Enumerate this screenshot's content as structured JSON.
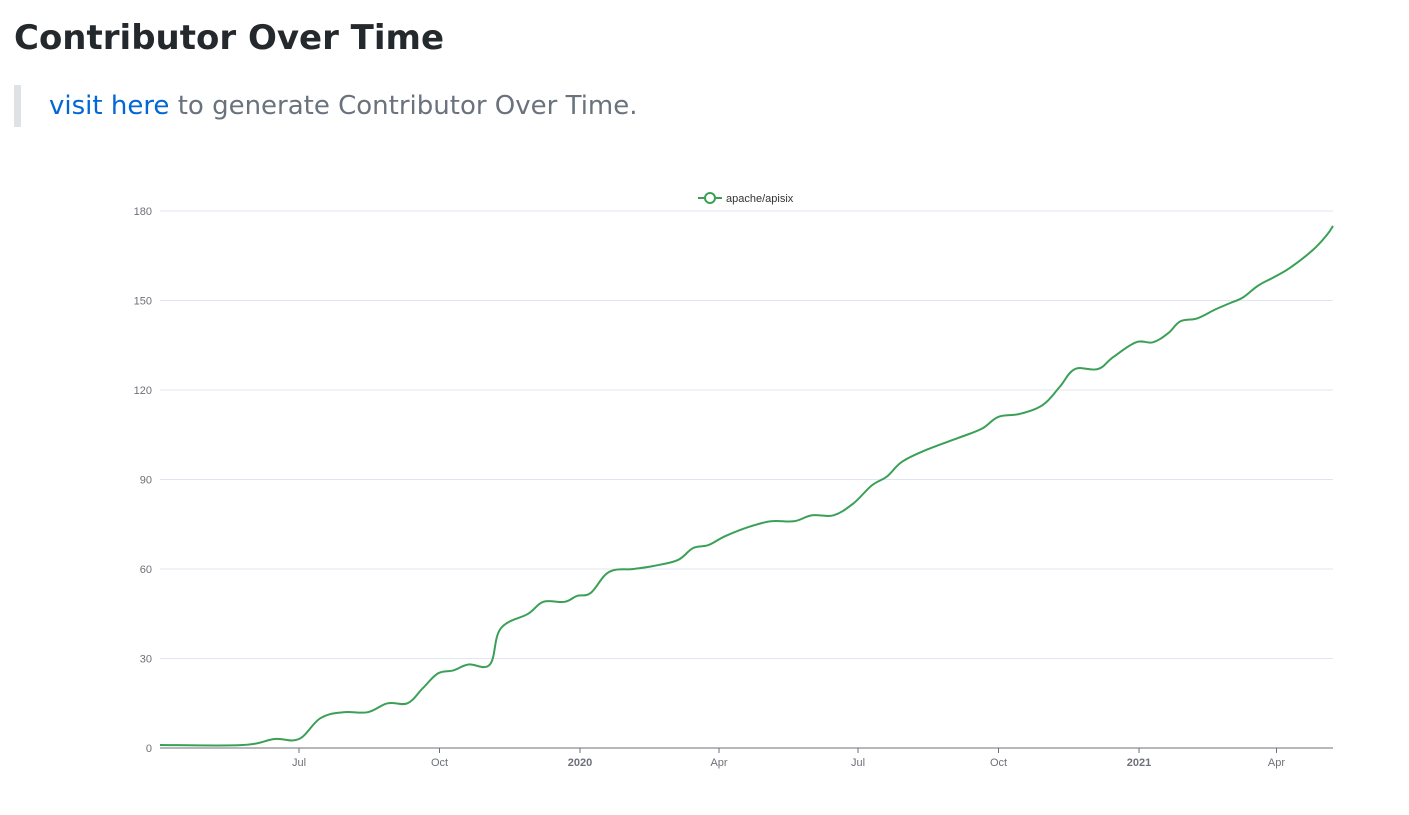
{
  "page": {
    "title": "Contributor Over Time",
    "note": {
      "link_text": "visit here",
      "rest_text": " to generate Contributor Over Time."
    }
  },
  "colors": {
    "series": "#3ba057",
    "grid": "#e0e6f1",
    "axis": "#6e7079"
  },
  "chart_data": {
    "type": "line",
    "title": "",
    "xlabel": "",
    "ylabel": "",
    "ylim": [
      0,
      180
    ],
    "yticks": [
      0,
      30,
      60,
      90,
      120,
      150,
      180
    ],
    "xlim": [
      "2019-04-01",
      "2021-05-08"
    ],
    "xticks": [
      {
        "date": "2019-07-01",
        "label": "Jul",
        "bold": false
      },
      {
        "date": "2019-10-01",
        "label": "Oct",
        "bold": false
      },
      {
        "date": "2020-01-01",
        "label": "2020",
        "bold": true
      },
      {
        "date": "2020-04-01",
        "label": "Apr",
        "bold": false
      },
      {
        "date": "2020-07-01",
        "label": "Jul",
        "bold": false
      },
      {
        "date": "2020-10-01",
        "label": "Oct",
        "bold": false
      },
      {
        "date": "2021-01-01",
        "label": "2021",
        "bold": true
      },
      {
        "date": "2021-04-01",
        "label": "Apr",
        "bold": false
      }
    ],
    "legend_position": "top-center",
    "grid": true,
    "series": [
      {
        "name": "apache/apisix",
        "points": [
          [
            "2019-04-01",
            1
          ],
          [
            "2019-05-25",
            1
          ],
          [
            "2019-06-15",
            3
          ],
          [
            "2019-07-01",
            3
          ],
          [
            "2019-07-15",
            10
          ],
          [
            "2019-07-30",
            12
          ],
          [
            "2019-08-15",
            12
          ],
          [
            "2019-08-28",
            15
          ],
          [
            "2019-09-10",
            15
          ],
          [
            "2019-09-20",
            20
          ],
          [
            "2019-09-30",
            25
          ],
          [
            "2019-10-10",
            26
          ],
          [
            "2019-10-20",
            28
          ],
          [
            "2019-11-03",
            28
          ],
          [
            "2019-11-10",
            40
          ],
          [
            "2019-11-28",
            45
          ],
          [
            "2019-12-08",
            49
          ],
          [
            "2019-12-22",
            49
          ],
          [
            "2019-12-30",
            51
          ],
          [
            "2020-01-08",
            52
          ],
          [
            "2020-01-20",
            59
          ],
          [
            "2020-02-05",
            60
          ],
          [
            "2020-02-18",
            61
          ],
          [
            "2020-03-05",
            63
          ],
          [
            "2020-03-15",
            67
          ],
          [
            "2020-03-25",
            68
          ],
          [
            "2020-04-05",
            71
          ],
          [
            "2020-04-20",
            74
          ],
          [
            "2020-05-05",
            76
          ],
          [
            "2020-05-20",
            76
          ],
          [
            "2020-06-01",
            78
          ],
          [
            "2020-06-15",
            78
          ],
          [
            "2020-06-28",
            82
          ],
          [
            "2020-07-10",
            88
          ],
          [
            "2020-07-20",
            91
          ],
          [
            "2020-07-30",
            96
          ],
          [
            "2020-08-15",
            100
          ],
          [
            "2020-09-05",
            104
          ],
          [
            "2020-09-20",
            107
          ],
          [
            "2020-10-01",
            111
          ],
          [
            "2020-10-15",
            112
          ],
          [
            "2020-10-30",
            115
          ],
          [
            "2020-11-10",
            121
          ],
          [
            "2020-11-20",
            127
          ],
          [
            "2020-12-05",
            127
          ],
          [
            "2020-12-15",
            131
          ],
          [
            "2020-12-30",
            136
          ],
          [
            "2021-01-10",
            136
          ],
          [
            "2021-01-20",
            139
          ],
          [
            "2021-01-28",
            143
          ],
          [
            "2021-02-08",
            144
          ],
          [
            "2021-02-20",
            147
          ],
          [
            "2021-03-01",
            149
          ],
          [
            "2021-03-10",
            151
          ],
          [
            "2021-03-20",
            155
          ],
          [
            "2021-03-31",
            158
          ],
          [
            "2021-04-10",
            161
          ],
          [
            "2021-04-25",
            167
          ],
          [
            "2021-05-04",
            172
          ],
          [
            "2021-05-08",
            175
          ]
        ]
      }
    ]
  }
}
